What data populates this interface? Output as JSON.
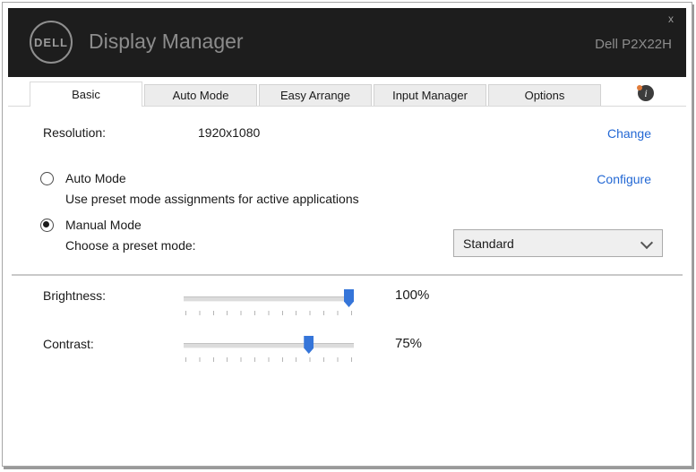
{
  "window": {
    "close_label": "x",
    "header": {
      "logo_text": "DELL",
      "title": "Display Manager",
      "model": "Dell P2X22H"
    }
  },
  "tabs": [
    {
      "label": "Basic",
      "active": true
    },
    {
      "label": "Auto Mode",
      "active": false
    },
    {
      "label": "Easy Arrange",
      "active": false
    },
    {
      "label": "Input Manager",
      "active": false
    },
    {
      "label": "Options",
      "active": false
    }
  ],
  "info_icon": "info-circle",
  "basic_panel": {
    "resolution_label": "Resolution:",
    "resolution_value": "1920x1080",
    "change_link": "Change",
    "configure_link": "Configure",
    "auto_mode": {
      "label": "Auto Mode",
      "description": "Use preset mode assignments for active applications",
      "selected": false
    },
    "manual_mode": {
      "label": "Manual Mode",
      "description": "Choose a preset mode:",
      "selected": true
    },
    "preset_dropdown": {
      "value": "Standard"
    },
    "brightness": {
      "label": "Brightness:",
      "value": "100%",
      "percent": 100
    },
    "contrast": {
      "label": "Contrast:",
      "value": "75%",
      "percent": 75
    }
  },
  "colors": {
    "accent_link": "#2368d4",
    "slider_thumb": "#3575d9",
    "header_bg": "#1d1d1d",
    "notification_dot": "#e07b39"
  }
}
